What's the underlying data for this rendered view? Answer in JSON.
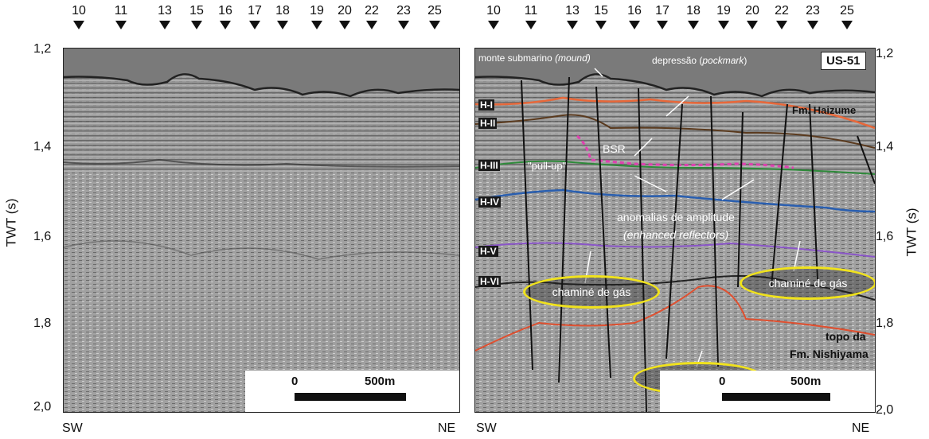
{
  "markers": [
    "10",
    "11",
    "13",
    "15",
    "16",
    "17",
    "18",
    "19",
    "20",
    "22",
    "23",
    "25"
  ],
  "y_ticks": [
    "1,2",
    "1,4",
    "1,6",
    "1,8",
    "2,0"
  ],
  "axis_title": "TWT (s)",
  "direction": {
    "left": "SW",
    "right": "NE"
  },
  "scale": {
    "zero": "0",
    "length": "500m"
  },
  "line_id": "US-51",
  "horizons": [
    "H-I",
    "H-II",
    "H-III",
    "H-IV",
    "H-V",
    "H-VI"
  ],
  "annotations": {
    "mound_prefix": "monte submarino",
    "mound_italic": "(mound)",
    "pock_prefix": "depressão (",
    "pock_italic": "pockmark",
    "pock_suffix": ")",
    "pullup": "\"pull-up\"",
    "bsr": "BSR",
    "amp_line1": "anomalias de amplitude",
    "amp_line2": "(enhanced reflectors)",
    "fm_haizume": "Fm. Haizume",
    "topo_line1": "topo da",
    "topo_line2": "Fm. Nishiyama",
    "chimney": [
      "chaminé de gás",
      "chaminé de gás",
      "chaminé de gás"
    ]
  },
  "colors": {
    "H-I": "#e8683a",
    "H-II": "#5a3a1e",
    "H-III": "#2e8a3a",
    "H-IV": "#2a5fb0",
    "H-V": "#8a55c8",
    "H-VI": "#e05030",
    "BSR": "#e040b0",
    "ellipse": "#f0e21c"
  }
}
